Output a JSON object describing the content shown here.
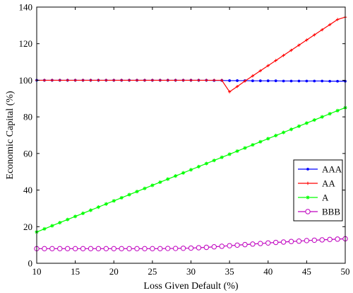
{
  "chart_data": {
    "type": "line",
    "title": "",
    "xlabel": "Loss Given Default (%)",
    "ylabel": "Economic Capital (%)",
    "xlim": [
      10,
      50
    ],
    "ylim": [
      0,
      140
    ],
    "xticks": [
      10,
      15,
      20,
      25,
      30,
      35,
      40,
      45,
      50
    ],
    "yticks": [
      0,
      20,
      40,
      60,
      80,
      100,
      120,
      140
    ],
    "grid": false,
    "legend_position": "right",
    "series": [
      {
        "name": "AAA",
        "color": "#0000ff",
        "marker": "dot",
        "x": [
          10,
          11,
          12,
          13,
          14,
          15,
          16,
          17,
          18,
          19,
          20,
          21,
          22,
          23,
          24,
          25,
          26,
          27,
          28,
          29,
          30,
          31,
          32,
          33,
          34,
          35,
          36,
          37,
          38,
          39,
          40,
          41,
          42,
          43,
          44,
          45,
          46,
          47,
          48,
          49,
          50
        ],
        "y": [
          100,
          100,
          100,
          100,
          100,
          100,
          100,
          100,
          100,
          100,
          100,
          100,
          100,
          100,
          100,
          100,
          100,
          100,
          100,
          100,
          100,
          100,
          100,
          99.9,
          99.9,
          99.8,
          99.8,
          99.8,
          99.7,
          99.7,
          99.7,
          99.7,
          99.6,
          99.6,
          99.6,
          99.6,
          99.6,
          99.6,
          99.5,
          99.5,
          99.5
        ]
      },
      {
        "name": "AA",
        "color": "#ff0000",
        "marker": "plus",
        "x": [
          10,
          11,
          12,
          13,
          14,
          15,
          16,
          17,
          18,
          19,
          20,
          21,
          22,
          23,
          24,
          25,
          26,
          27,
          28,
          29,
          30,
          31,
          32,
          33,
          34,
          35,
          36,
          37,
          38,
          39,
          40,
          41,
          42,
          43,
          44,
          45,
          46,
          47,
          48,
          49,
          50
        ],
        "y": [
          100,
          100,
          100,
          100,
          100,
          100,
          100,
          100,
          100,
          100,
          100,
          100,
          100,
          100,
          100,
          100,
          100,
          100,
          100,
          100,
          100,
          100,
          100,
          100,
          100,
          93.7,
          96.6,
          99.6,
          102.4,
          105.2,
          108.0,
          110.8,
          113.6,
          116.4,
          119.2,
          122.0,
          124.8,
          127.6,
          130.4,
          133.2,
          134.5
        ]
      },
      {
        "name": "A",
        "color": "#00ff00",
        "marker": "star",
        "x": [
          10,
          11,
          12,
          13,
          14,
          15,
          16,
          17,
          18,
          19,
          20,
          21,
          22,
          23,
          24,
          25,
          26,
          27,
          28,
          29,
          30,
          31,
          32,
          33,
          34,
          35,
          36,
          37,
          38,
          39,
          40,
          41,
          42,
          43,
          44,
          45,
          46,
          47,
          48,
          49,
          50
        ],
        "y": [
          17.1,
          18.8,
          20.5,
          22.2,
          23.9,
          25.6,
          27.3,
          29.0,
          30.7,
          32.4,
          34.1,
          35.8,
          37.5,
          39.2,
          40.9,
          42.6,
          44.3,
          46.0,
          47.7,
          49.4,
          51.1,
          52.8,
          54.5,
          56.2,
          57.9,
          59.6,
          61.3,
          63.0,
          64.7,
          66.4,
          68.1,
          69.8,
          71.5,
          73.2,
          74.9,
          76.6,
          78.3,
          80.0,
          81.7,
          83.4,
          85.0
        ]
      },
      {
        "name": "BBB",
        "color": "#bf00bf",
        "marker": "circle",
        "x": [
          10,
          11,
          12,
          13,
          14,
          15,
          16,
          17,
          18,
          19,
          20,
          21,
          22,
          23,
          24,
          25,
          26,
          27,
          28,
          29,
          30,
          31,
          32,
          33,
          34,
          35,
          36,
          37,
          38,
          39,
          40,
          41,
          42,
          43,
          44,
          45,
          46,
          47,
          48,
          49,
          50
        ],
        "y": [
          8.0,
          8.0,
          8.0,
          8.0,
          8.0,
          8.0,
          8.0,
          8.0,
          8.0,
          8.0,
          8.0,
          8.0,
          8.0,
          8.0,
          8.0,
          8.0,
          8.0,
          8.1,
          8.1,
          8.2,
          8.3,
          8.5,
          8.7,
          9.0,
          9.3,
          9.6,
          9.9,
          10.2,
          10.5,
          10.8,
          11.1,
          11.4,
          11.6,
          11.9,
          12.1,
          12.4,
          12.6,
          12.8,
          13.0,
          13.2,
          13.4
        ]
      }
    ]
  }
}
